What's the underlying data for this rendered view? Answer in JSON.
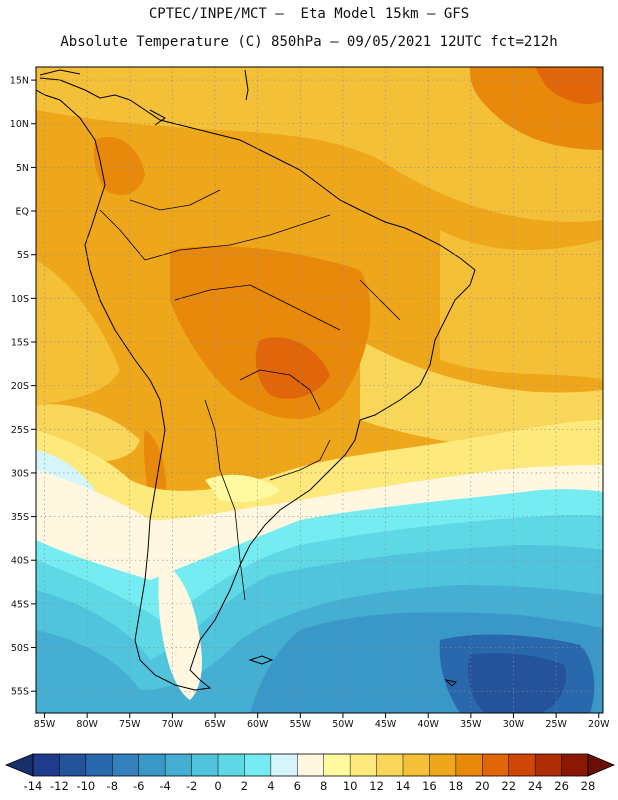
{
  "header": {
    "line1": "CPTEC/INPE/MCT –  Eta Model 15km – GFS",
    "line2": "Absolute Temperature (C) 850hPa – 09/05/2021 12UTC fct=212h"
  },
  "chart_data": {
    "type": "map",
    "variable": "Absolute Temperature (C) 850hPa",
    "model": "Eta Model 15km – GFS",
    "lon_range": [
      -86,
      -19.5
    ],
    "lat_range": [
      -57.5,
      16.5
    ],
    "lon_ticks": [
      -85,
      -80,
      -75,
      -70,
      -65,
      -60,
      -55,
      -50,
      -45,
      -40,
      -35,
      -30,
      -25,
      -20
    ],
    "lon_labels": [
      "85W",
      "80W",
      "75W",
      "70W",
      "65W",
      "60W",
      "55W",
      "50W",
      "45W",
      "40W",
      "35W",
      "30W",
      "25W",
      "20W"
    ],
    "lat_ticks": [
      15,
      10,
      5,
      0,
      -5,
      -10,
      -15,
      -20,
      -25,
      -30,
      -35,
      -40,
      -45,
      -50,
      -55
    ],
    "lat_labels": [
      "15N",
      "10N",
      "5N",
      "EQ",
      "5S",
      "10S",
      "15S",
      "20S",
      "25S",
      "30S",
      "35S",
      "40S",
      "45S",
      "50S",
      "55S"
    ],
    "colorbar": {
      "ticks": [
        "-14",
        "-12",
        "-10",
        "-8",
        "-6",
        "-4",
        "-2",
        "0",
        "2",
        "4",
        "6",
        "8",
        "10",
        "12",
        "14",
        "16",
        "18",
        "20",
        "22",
        "24",
        "26",
        "28"
      ],
      "colors": [
        "#1f3c8c",
        "#24539c",
        "#2a68ad",
        "#3381bd",
        "#3a98c8",
        "#44afd3",
        "#4fc4dc",
        "#5fd8e6",
        "#74ecf2",
        "#d6f5fb",
        "#fff7e0",
        "#fffaa0",
        "#fde97c",
        "#f8d65a",
        "#f3c038",
        "#eea71a",
        "#e8890c",
        "#e1660a",
        "#cf4708",
        "#b02e06",
        "#8a1804"
      ],
      "under_color": "#1a2f6e",
      "over_color": "#6a0e06"
    }
  }
}
